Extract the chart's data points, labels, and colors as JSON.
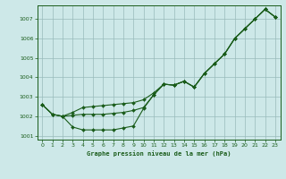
{
  "background_color": "#cde8e8",
  "plot_bg_color": "#cde8e8",
  "grid_color": "#99bbbb",
  "line_color": "#1a5c1a",
  "xlabel": "Graphe pression niveau de la mer (hPa)",
  "ylim": [
    1000.8,
    1007.7
  ],
  "xlim": [
    -0.5,
    23.5
  ],
  "yticks": [
    1001,
    1002,
    1003,
    1004,
    1005,
    1006,
    1007
  ],
  "xticks": [
    0,
    1,
    2,
    3,
    4,
    5,
    6,
    7,
    8,
    9,
    10,
    11,
    12,
    13,
    14,
    15,
    16,
    17,
    18,
    19,
    20,
    21,
    22,
    23
  ],
  "series1_x": [
    0,
    1,
    2,
    3,
    4,
    5,
    6,
    7,
    8,
    9,
    10,
    11,
    12,
    13,
    14,
    15,
    16,
    17,
    18,
    19,
    20,
    21,
    22,
    23
  ],
  "series1_y": [
    1002.6,
    1002.1,
    1002.0,
    1001.45,
    1001.3,
    1001.3,
    1001.3,
    1001.3,
    1001.4,
    1001.5,
    1002.4,
    1003.1,
    1003.65,
    1003.6,
    1003.8,
    1003.5,
    1004.2,
    1004.7,
    1005.2,
    1006.0,
    1006.5,
    1007.0,
    1007.5,
    1007.1
  ],
  "series2_x": [
    0,
    1,
    2,
    3,
    4,
    5,
    6,
    7,
    8,
    9,
    10,
    11,
    12,
    13,
    14,
    15,
    16,
    17,
    18,
    19,
    20,
    21,
    22,
    23
  ],
  "series2_y": [
    1002.6,
    1002.1,
    1002.0,
    1002.05,
    1002.1,
    1002.1,
    1002.1,
    1002.15,
    1002.2,
    1002.3,
    1002.45,
    1003.1,
    1003.65,
    1003.6,
    1003.8,
    1003.5,
    1004.2,
    1004.7,
    1005.2,
    1006.0,
    1006.5,
    1007.0,
    1007.5,
    1007.1
  ],
  "series3_x": [
    0,
    1,
    2,
    3,
    4,
    5,
    6,
    7,
    8,
    9,
    10,
    11,
    12,
    13,
    14,
    15,
    16,
    17,
    18,
    19,
    20,
    21,
    22,
    23
  ],
  "series3_y": [
    1002.6,
    1002.1,
    1002.0,
    1002.2,
    1002.45,
    1002.5,
    1002.55,
    1002.6,
    1002.65,
    1002.7,
    1002.85,
    1003.2,
    1003.65,
    1003.6,
    1003.8,
    1003.5,
    1004.2,
    1004.7,
    1005.2,
    1006.0,
    1006.5,
    1007.0,
    1007.5,
    1007.1
  ]
}
